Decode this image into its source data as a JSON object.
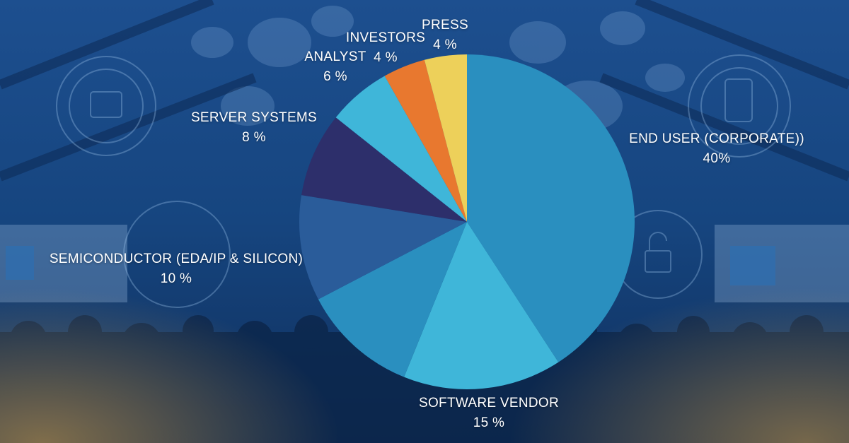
{
  "chart_data": {
    "type": "pie",
    "title": "",
    "slices": [
      {
        "label": "END USER (CORPORATE))",
        "value": 40,
        "value_label": "40%",
        "color": "#2a8fbf"
      },
      {
        "label": "SOFTWARE VENDOR",
        "value": 15,
        "value_label": "15 %",
        "color": "#3fb6d9"
      },
      {
        "label": "",
        "value": 11,
        "value_label": "",
        "color": "#2a8fbf"
      },
      {
        "label": "SEMICONDUCTOR (EDA/IP & SILICON)",
        "value": 10,
        "value_label": "10 %",
        "color": "#2a5c9a"
      },
      {
        "label": "SERVER SYSTEMS",
        "value": 8,
        "value_label": "8 %",
        "color": "#2d2f6b"
      },
      {
        "label": "ANALYST",
        "value": 6,
        "value_label": "6 %",
        "color": "#3fb6d9"
      },
      {
        "label": "INVESTORS",
        "value": 4,
        "value_label": "4 %",
        "color": "#e8782f"
      },
      {
        "label": "PRESS",
        "value": 4,
        "value_label": "4 %",
        "color": "#edd05a"
      }
    ],
    "start_angle_deg": 0,
    "direction": "clockwise"
  }
}
